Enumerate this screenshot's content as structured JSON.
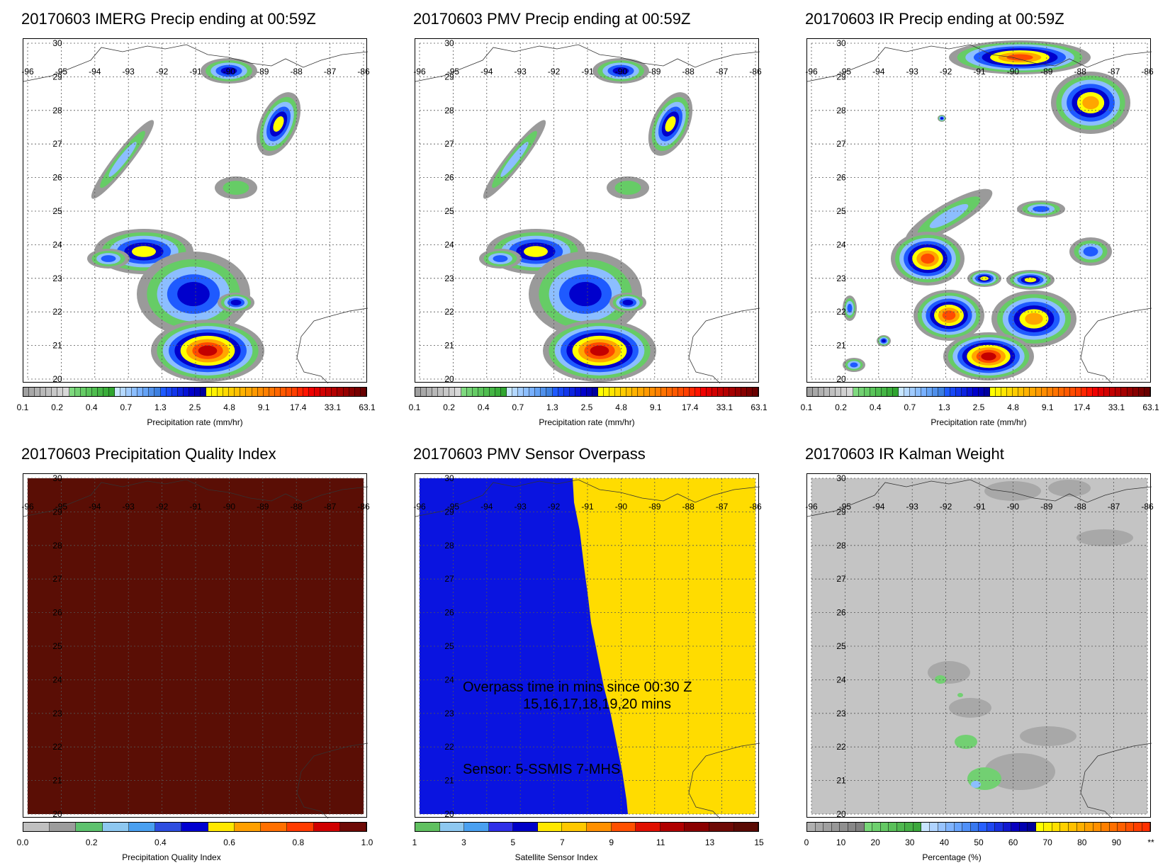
{
  "panels": [
    {
      "title": "20170603 IMERG Precip ending at 00:59Z",
      "colorbar": "precip",
      "colorbar_label": "Precipitation rate (mm/hr)"
    },
    {
      "title": "20170603 PMV Precip ending at 00:59Z",
      "colorbar": "precip",
      "colorbar_label": "Precipitation rate (mm/hr)"
    },
    {
      "title": "20170603 IR Precip ending at 00:59Z",
      "colorbar": "precip",
      "colorbar_label": "Precipitation rate (mm/hr)"
    },
    {
      "title": "20170603 Precipitation Quality Index",
      "colorbar": "quality",
      "colorbar_label": "Precipitation Quality Index"
    },
    {
      "title": "20170603 PMV Sensor Overpass",
      "colorbar": "sensor",
      "colorbar_label": "Satellite Sensor Index",
      "overlay_line1": "Overpass time in mins since 00:30 Z",
      "overlay_line2": "15,16,17,18,19,20 mins",
      "overlay_sensor": "Sensor:   5-SSMIS  7-MHS"
    },
    {
      "title": "20170603 IR Kalman Weight",
      "colorbar": "weight",
      "colorbar_label": "Percentage (%)"
    }
  ],
  "axes": {
    "lat_labels": [
      "30",
      "29",
      "28",
      "27",
      "26",
      "25",
      "24",
      "23",
      "22",
      "21",
      "20"
    ],
    "lon_labels": [
      "-96",
      "-95",
      "-94",
      "-93",
      "-92",
      "-91",
      "-90",
      "-89",
      "-88",
      "-87",
      "-86"
    ]
  },
  "colorbars": {
    "precip": {
      "colors": [
        "#a0a0a0",
        "#a8a8a8",
        "#b0b0b0",
        "#b8b8b8",
        "#c0c0c0",
        "#c8c8c8",
        "#d0d0d0",
        "#d8d8d8",
        "#7fd97f",
        "#73d173",
        "#66cc66",
        "#5ac45a",
        "#4fbd4f",
        "#45b545",
        "#3aad3a",
        "#30a530",
        "#c8e6ff",
        "#b4d8ff",
        "#a0cbff",
        "#8cbeff",
        "#78b0ff",
        "#64a2f5",
        "#5090eb",
        "#3c7fe0",
        "#1e5aff",
        "#1848f5",
        "#1236eb",
        "#0c24e0",
        "#0612d6",
        "#0000cc",
        "#0000b8",
        "#00009f",
        "#ffff00",
        "#fff200",
        "#ffe600",
        "#ffd900",
        "#ffcc00",
        "#ffbf00",
        "#ffb200",
        "#ffa600",
        "#ff9900",
        "#ff8c00",
        "#ff7f00",
        "#ff7300",
        "#ff6600",
        "#ff5900",
        "#ff4c00",
        "#ff3f00",
        "#ff2600",
        "#ff1400",
        "#f00000",
        "#e10000",
        "#d20000",
        "#c30000",
        "#b40000",
        "#a50000",
        "#960000",
        "#870000",
        "#780000",
        "#690000"
      ],
      "ticks": [
        "0.1",
        "0.2",
        "0.4",
        "0.7",
        "1.3",
        "2.5",
        "4.8",
        "9.1",
        "17.4",
        "33.1",
        "63.1"
      ]
    },
    "quality": {
      "colors": [
        "#c0c0c0",
        "#9c9c9c",
        "#5ec26e",
        "#8ec8f0",
        "#4aa0f0",
        "#2e4ee0",
        "#0000d0",
        "#ffe800",
        "#ffa000",
        "#ff7000",
        "#ff3c00",
        "#d00000",
        "#6e0a06"
      ],
      "ticks": [
        "0.0",
        "0.2",
        "0.4",
        "0.6",
        "0.8",
        "1.0"
      ]
    },
    "sensor": {
      "colors": [
        "#60c060",
        "#8ec8f0",
        "#4aa0f0",
        "#3030e8",
        "#0000c8",
        "#ffe800",
        "#ffc800",
        "#ff9000",
        "#ff5000",
        "#e01000",
        "#b00000",
        "#8a0000",
        "#6e0a06",
        "#5a0a04"
      ],
      "ticks": [
        "1",
        "3",
        "5",
        "7",
        "9",
        "11",
        "13",
        "15"
      ]
    },
    "weight": {
      "colors": [
        "#b0b0b0",
        "#a8a8a8",
        "#a0a0a0",
        "#989898",
        "#909090",
        "#888888",
        "#808080",
        "#78d878",
        "#6ed06e",
        "#64c864",
        "#5ac05a",
        "#50b850",
        "#46b046",
        "#3ca83c",
        "#c8e4ff",
        "#b0d4ff",
        "#98c4ff",
        "#80b4ff",
        "#68a4ff",
        "#5090f8",
        "#3878f0",
        "#2860ff",
        "#2048f0",
        "#1830e0",
        "#1018d0",
        "#0800c0",
        "#0000b0",
        "#000098",
        "#ffff00",
        "#fff000",
        "#ffe000",
        "#ffd000",
        "#ffc000",
        "#ffb000",
        "#ffa000",
        "#ff9000",
        "#ff8000",
        "#ff7000",
        "#ff6000",
        "#ff5000",
        "#ff4000",
        "#ff3000"
      ],
      "ticks": [
        "0",
        "10",
        "20",
        "30",
        "40",
        "50",
        "60",
        "70",
        "80",
        "90",
        "**"
      ]
    }
  },
  "colors": {
    "qi_fill": "#5a0e05",
    "sensor_blue": "#0a14e0",
    "sensor_yellow": "#ffdc00",
    "weight_bg": "#c4c4c4"
  }
}
